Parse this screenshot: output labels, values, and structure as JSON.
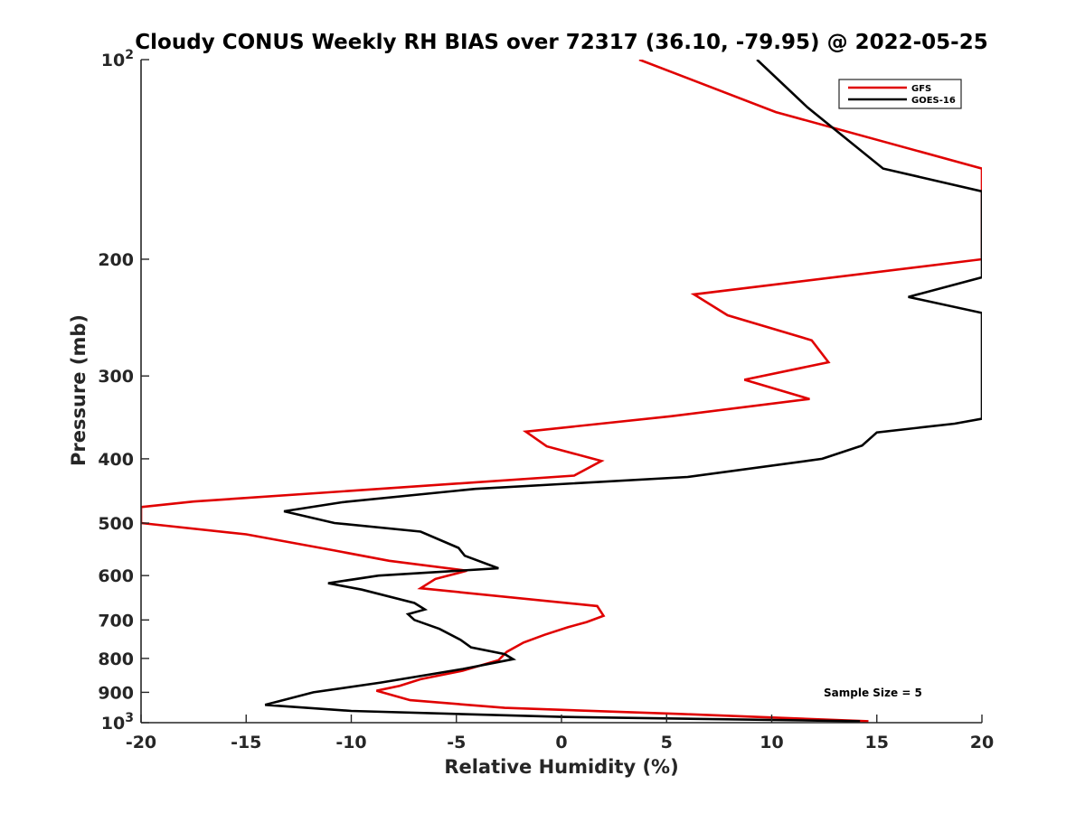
{
  "chart_data": {
    "type": "line",
    "title": "Cloudy CONUS Weekly RH BIAS over 72317 (36.10, -79.95) @ 2022-05-25",
    "xlabel": "Relative Humidity (%)",
    "ylabel": "Pressure (mb)",
    "xlim": [
      -20,
      20
    ],
    "ylim": [
      100,
      1000
    ],
    "y_scale": "log",
    "y_reversed": true,
    "x_ticks": [
      "-20",
      "-15",
      "-10",
      "-5",
      "0",
      "5",
      "10",
      "15",
      "20"
    ],
    "y_ticks": [
      {
        "value": 100,
        "base": "10",
        "exp": "2"
      },
      {
        "value": 200,
        "label": "200"
      },
      {
        "value": 300,
        "label": "300"
      },
      {
        "value": 400,
        "label": "400"
      },
      {
        "value": 500,
        "label": "500"
      },
      {
        "value": 600,
        "label": "600"
      },
      {
        "value": 700,
        "label": "700"
      },
      {
        "value": 800,
        "label": "800"
      },
      {
        "value": 900,
        "label": "900"
      },
      {
        "value": 1000,
        "base": "10",
        "exp": "3"
      }
    ],
    "legend_position": "top-right",
    "grid": false,
    "annotation": "Sample Size = 5",
    "series": [
      {
        "name": "GFS",
        "color": "#e00000",
        "points": [
          [
            3.7,
            100
          ],
          [
            10.2,
            120
          ],
          [
            20,
            146
          ],
          [
            20,
            200
          ],
          [
            6.3,
            226
          ],
          [
            7.9,
            243
          ],
          [
            11.9,
            265
          ],
          [
            12.7,
            286
          ],
          [
            8.7,
            304
          ],
          [
            11.8,
            325
          ],
          [
            5.2,
            345
          ],
          [
            -1.7,
            364
          ],
          [
            -0.7,
            383
          ],
          [
            1.9,
            403
          ],
          [
            0.6,
            424
          ],
          [
            -17.5,
            464
          ],
          [
            -20,
            473
          ],
          [
            -20,
            500
          ],
          [
            -15,
            520
          ],
          [
            -10.8,
            550
          ],
          [
            -8.2,
            570
          ],
          [
            -4.5,
            590
          ],
          [
            -6.0,
            607
          ],
          [
            -6.7,
            627
          ],
          [
            1.7,
            667
          ],
          [
            2.0,
            690
          ],
          [
            1.2,
            705
          ],
          [
            0.3,
            718
          ],
          [
            -0.8,
            737
          ],
          [
            -1.8,
            757
          ],
          [
            -2.6,
            782
          ],
          [
            -3.0,
            805
          ],
          [
            -4.7,
            835
          ],
          [
            -6.7,
            860
          ],
          [
            -7.7,
            880
          ],
          [
            -8.8,
            895
          ],
          [
            -7.2,
            925
          ],
          [
            -2.7,
            950
          ],
          [
            5.6,
            970
          ],
          [
            14.6,
            995
          ]
        ]
      },
      {
        "name": "GOES-16",
        "color": "#000000",
        "points": [
          [
            9.3,
            100
          ],
          [
            11.7,
            118
          ],
          [
            15.3,
            146
          ],
          [
            20,
            158
          ],
          [
            20,
            213
          ],
          [
            16.5,
            228
          ],
          [
            20,
            241
          ],
          [
            20,
            348
          ],
          [
            18.7,
            354
          ],
          [
            15,
            365
          ],
          [
            14.3,
            382
          ],
          [
            12.4,
            400
          ],
          [
            6.0,
            426
          ],
          [
            -4.1,
            444
          ],
          [
            -10.4,
            465
          ],
          [
            -13.2,
            480
          ],
          [
            -10.8,
            500
          ],
          [
            -6.7,
            515
          ],
          [
            -4.9,
            545
          ],
          [
            -4.6,
            560
          ],
          [
            -3.0,
            585
          ],
          [
            -8.7,
            600
          ],
          [
            -11.1,
            616
          ],
          [
            -9.5,
            630
          ],
          [
            -7.0,
            660
          ],
          [
            -6.5,
            675
          ],
          [
            -7.3,
            686
          ],
          [
            -7.0,
            700
          ],
          [
            -5.8,
            722
          ],
          [
            -4.8,
            750
          ],
          [
            -4.3,
            770
          ],
          [
            -2.7,
            788
          ],
          [
            -2.3,
            802
          ],
          [
            -4.7,
            830
          ],
          [
            -8.6,
            870
          ],
          [
            -11.8,
            900
          ],
          [
            -14.1,
            940
          ],
          [
            -10.0,
            960
          ],
          [
            0,
            980
          ],
          [
            14.2,
            995
          ]
        ]
      }
    ]
  }
}
